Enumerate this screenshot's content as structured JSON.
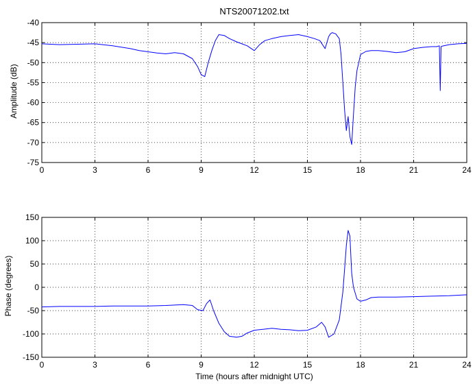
{
  "chart_data": [
    {
      "type": "line",
      "title": "NTS20071202.txt",
      "xlabel": "",
      "ylabel": "Amplitude (dB)",
      "xlim": [
        0,
        24
      ],
      "ylim": [
        -75,
        -40
      ],
      "xticks": [
        "0",
        "3",
        "6",
        "9",
        "12",
        "15",
        "18",
        "21",
        "24"
      ],
      "yticks": [
        "-40",
        "-45",
        "-50",
        "-55",
        "-60",
        "-65",
        "-70",
        "-75"
      ],
      "grid": true,
      "color": "#0000ff",
      "series": [
        {
          "x": [
            0,
            0.5,
            1,
            2,
            3,
            4,
            5,
            5.5,
            6,
            6.5,
            7,
            7.5,
            8,
            8.5,
            8.8,
            9,
            9.2,
            9.4,
            9.6,
            9.8,
            10,
            10.3,
            10.6,
            11,
            11.3,
            11.6,
            12,
            12.3,
            12.6,
            13,
            13.5,
            14,
            14.5,
            15,
            15.4,
            15.7,
            16,
            16.2,
            16.3,
            16.4,
            16.6,
            16.8,
            16.9,
            17,
            17.1,
            17.2,
            17.3,
            17.4,
            17.5,
            17.6,
            17.7,
            17.8,
            18,
            18.3,
            18.6,
            19,
            19.5,
            20,
            20.5,
            21,
            21.5,
            22,
            22.3,
            22.45,
            22.5,
            22.55,
            22.6,
            23,
            23.5,
            24
          ],
          "y": [
            -45.3,
            -45.4,
            -45.5,
            -45.4,
            -45.3,
            -45.8,
            -46.5,
            -47.0,
            -47.3,
            -47.6,
            -47.8,
            -47.5,
            -47.8,
            -49.0,
            -51.0,
            -53.0,
            -53.5,
            -50.0,
            -47.0,
            -44.5,
            -43.0,
            -43.2,
            -44.0,
            -44.8,
            -45.3,
            -45.8,
            -47.0,
            -45.5,
            -44.5,
            -44.0,
            -43.5,
            -43.2,
            -43.0,
            -43.5,
            -44.0,
            -44.5,
            -46.5,
            -43.5,
            -42.8,
            -42.5,
            -42.8,
            -44.0,
            -48.0,
            -55.0,
            -62.0,
            -67.0,
            -63.5,
            -68.5,
            -70.5,
            -63.0,
            -56.0,
            -52.0,
            -48.0,
            -47.2,
            -47.0,
            -47.0,
            -47.2,
            -47.5,
            -47.3,
            -46.5,
            -46.2,
            -46.0,
            -46.0,
            -45.8,
            -57.0,
            -46.0,
            -45.9,
            -45.5,
            -45.3,
            -45.2
          ]
        }
      ]
    },
    {
      "type": "line",
      "title": "",
      "xlabel": "Time (hours after midnight UTC)",
      "ylabel": "Phase (degrees)",
      "xlim": [
        0,
        24
      ],
      "ylim": [
        -150,
        150
      ],
      "xticks": [
        "0",
        "3",
        "6",
        "9",
        "12",
        "15",
        "18",
        "21",
        "24"
      ],
      "yticks": [
        "150",
        "100",
        "50",
        "0",
        "-50",
        "-100",
        "-150"
      ],
      "grid": true,
      "color": "#0000ff",
      "series": [
        {
          "x": [
            0,
            1,
            2,
            3,
            4,
            5,
            6,
            7,
            8,
            8.5,
            8.8,
            9.1,
            9.3,
            9.5,
            9.7,
            10,
            10.3,
            10.6,
            11,
            11.3,
            11.6,
            12,
            12.5,
            13,
            13.5,
            14,
            14.5,
            15,
            15.5,
            15.8,
            16,
            16.2,
            16.5,
            16.8,
            17,
            17.1,
            17.2,
            17.3,
            17.4,
            17.5,
            17.6,
            17.8,
            18,
            18.3,
            18.6,
            19,
            20,
            21,
            22,
            23,
            24
          ],
          "y": [
            -42,
            -41,
            -41,
            -41,
            -40,
            -40,
            -40,
            -39,
            -37,
            -39,
            -48,
            -50,
            -35,
            -27,
            -50,
            -77,
            -95,
            -105,
            -107,
            -105,
            -98,
            -92,
            -90,
            -88,
            -90,
            -91,
            -93,
            -92,
            -85,
            -75,
            -85,
            -107,
            -100,
            -70,
            -10,
            40,
            90,
            122,
            110,
            30,
            0,
            -25,
            -30,
            -27,
            -22,
            -21,
            -21,
            -20,
            -19,
            -18,
            -16
          ]
        }
      ]
    }
  ]
}
